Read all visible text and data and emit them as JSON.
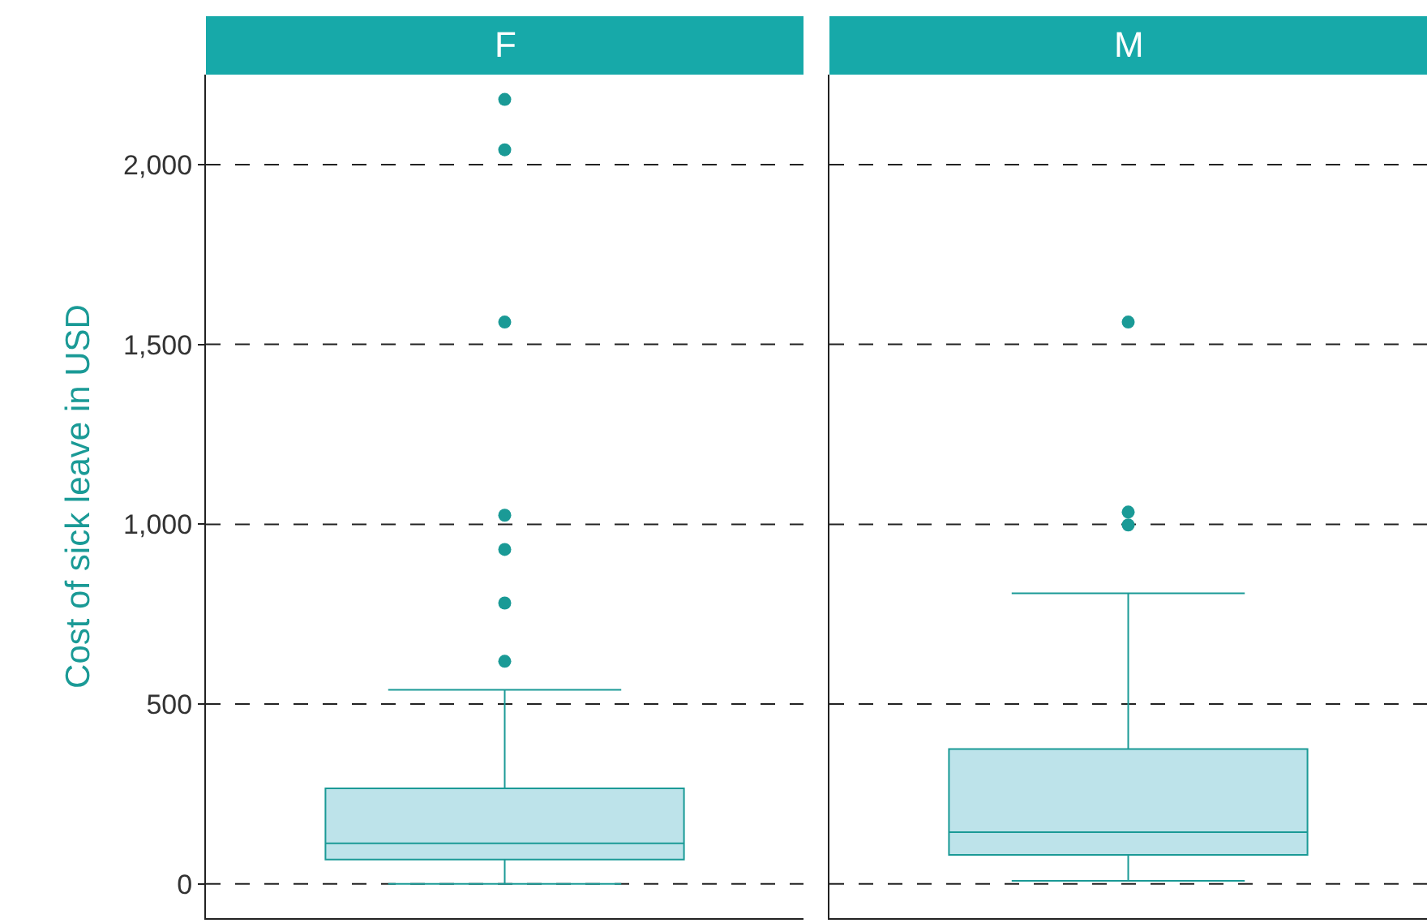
{
  "chart_data": {
    "type": "box",
    "ylabel": "Cost of sick leave in USD",
    "categories": [
      "F",
      "M"
    ],
    "color": "#1a9a96",
    "ylim": [
      -95,
      2250
    ],
    "yticks": [
      {
        "value": 0,
        "label": "0"
      },
      {
        "value": 500,
        "label": "500"
      },
      {
        "value": 1000,
        "label": "1,000"
      },
      {
        "value": 1500,
        "label": "1,500"
      },
      {
        "value": 2000,
        "label": "2,000"
      }
    ],
    "grid": "y",
    "line_style": "dashed",
    "marker": "circle",
    "boxes": [
      {
        "low": 0,
        "q1": 68,
        "median": 113,
        "q3": 266,
        "high": 540,
        "outliers": [
          619,
          781,
          930,
          1025,
          1562,
          2041,
          2181
        ]
      },
      {
        "low": 9,
        "q1": 81,
        "median": 144,
        "q3": 375,
        "high": 808,
        "outliers": [
          998,
          1034,
          1562
        ]
      }
    ]
  }
}
